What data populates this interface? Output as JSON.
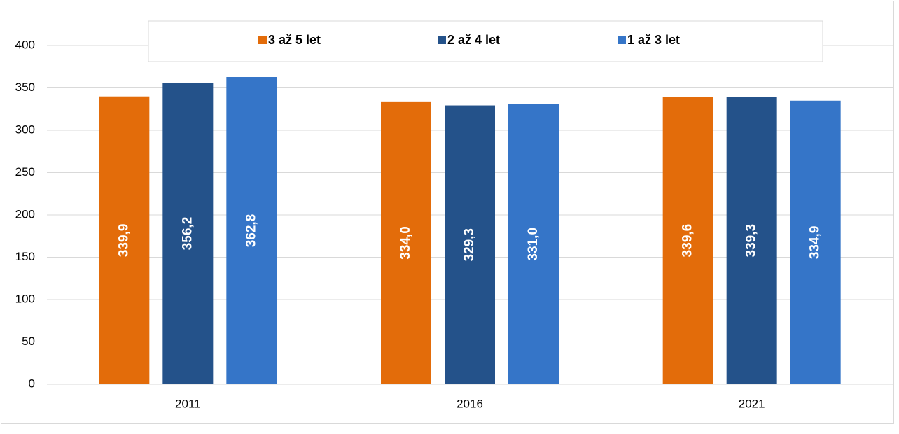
{
  "chart_data": {
    "type": "bar",
    "categories": [
      "2011",
      "2016",
      "2021"
    ],
    "series": [
      {
        "name": "3 až 5 let",
        "color": "#e36c0a",
        "values": [
          339.9,
          334.0,
          339.6
        ],
        "value_labels": [
          "339,9",
          "334,0",
          "339,6"
        ]
      },
      {
        "name": "2 až 4 let",
        "color": "#24528a",
        "values": [
          356.2,
          329.3,
          339.3
        ],
        "value_labels": [
          "356,2",
          "329,3",
          "339,3"
        ]
      },
      {
        "name": "1 až 3 let",
        "color": "#3575c8",
        "values": [
          362.8,
          331.0,
          334.9
        ],
        "value_labels": [
          "362,8",
          "331,0",
          "334,9"
        ]
      }
    ],
    "ylim": [
      0,
      400
    ],
    "yticks": [
      0,
      50,
      100,
      150,
      200,
      250,
      300,
      350,
      400
    ],
    "grid": true,
    "legend": "top"
  }
}
